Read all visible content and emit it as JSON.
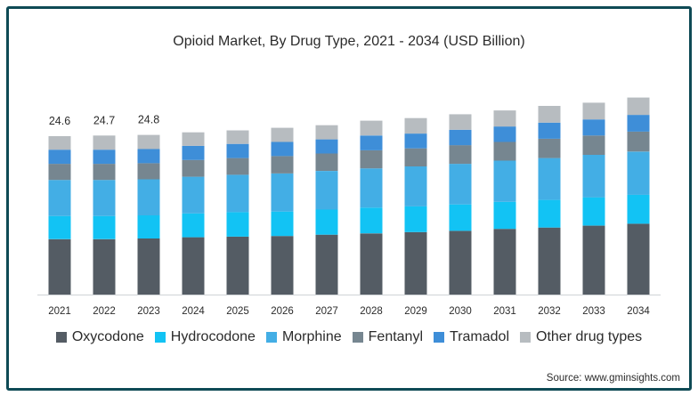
{
  "chart_data": {
    "type": "bar",
    "stacked": true,
    "title": "Opioid Market, By Drug Type, 2021 - 2034 (USD Billion)",
    "categories": [
      "2021",
      "2022",
      "2023",
      "2024",
      "2025",
      "2026",
      "2027",
      "2028",
      "2029",
      "2030",
      "2031",
      "2032",
      "2033",
      "2034"
    ],
    "totals_labels": [
      "24.6",
      "24.7",
      "24.8"
    ],
    "series": [
      {
        "name": "Oxycodone",
        "color": "#545c64",
        "values": [
          8.6,
          8.6,
          8.7,
          8.9,
          9.0,
          9.1,
          9.3,
          9.5,
          9.7,
          9.9,
          10.2,
          10.4,
          10.7,
          11.0
        ]
      },
      {
        "name": "Hydrocodone",
        "color": "#12c3f4",
        "values": [
          3.6,
          3.6,
          3.6,
          3.7,
          3.8,
          3.8,
          3.9,
          4.0,
          4.0,
          4.1,
          4.2,
          4.3,
          4.4,
          4.5
        ]
      },
      {
        "name": "Morphine",
        "color": "#43aee5",
        "values": [
          5.6,
          5.6,
          5.6,
          5.7,
          5.8,
          5.9,
          6.0,
          6.1,
          6.2,
          6.3,
          6.4,
          6.5,
          6.6,
          6.7
        ]
      },
      {
        "name": "Fentanyl",
        "color": "#768690",
        "values": [
          2.5,
          2.5,
          2.5,
          2.6,
          2.6,
          2.7,
          2.7,
          2.8,
          2.8,
          2.9,
          2.9,
          3.0,
          3.0,
          3.1
        ]
      },
      {
        "name": "Tramadol",
        "color": "#3e8ed8",
        "values": [
          2.2,
          2.2,
          2.2,
          2.2,
          2.2,
          2.2,
          2.2,
          2.3,
          2.3,
          2.4,
          2.4,
          2.5,
          2.5,
          2.6
        ]
      },
      {
        "name": "Other drug types",
        "color": "#b7bcc0",
        "values": [
          2.1,
          2.2,
          2.2,
          2.1,
          2.1,
          2.2,
          2.2,
          2.3,
          2.4,
          2.4,
          2.5,
          2.6,
          2.6,
          2.7
        ]
      }
    ],
    "ylim": [
      0,
      36
    ],
    "grid": false,
    "legend_position": "bottom"
  },
  "source": "Source: www.gminsights.com"
}
